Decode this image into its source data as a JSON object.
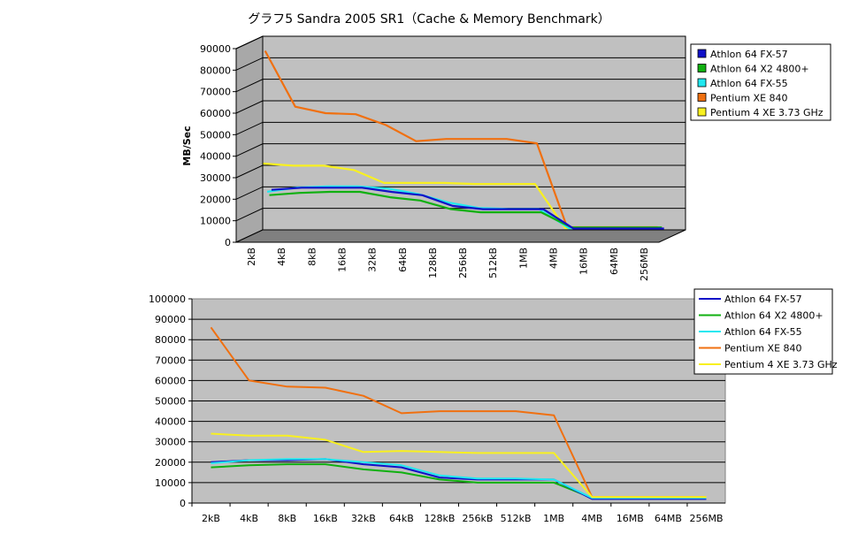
{
  "title": "グラフ5  Sandra 2005 SR1（Cache & Memory Benchmark）",
  "colors": {
    "athlon_fx57": "#1010c8",
    "athlon_x2": "#10b010",
    "athlon_fx55": "#20e8f0",
    "pentium_xe840": "#f07010",
    "pentium4_xe": "#f8f020",
    "plot_bg": "#c0c0c0"
  },
  "chart_data": [
    {
      "type": "line",
      "style": "3d",
      "title": "",
      "xlabel": "",
      "ylabel": "MB/Sec",
      "ylim": [
        0,
        90000
      ],
      "yticks": [
        "0",
        "10000",
        "20000",
        "30000",
        "40000",
        "50000",
        "60000",
        "70000",
        "80000",
        "90000"
      ],
      "categories": [
        "2kB",
        "4kB",
        "8kB",
        "16kB",
        "32kB",
        "64kB",
        "128kB",
        "256kB",
        "512kB",
        "1MB",
        "4MB",
        "16MB",
        "64MB",
        "256MB"
      ],
      "legend_position": "top-right",
      "grid": true,
      "series": [
        {
          "name": "Athlon 64 FX-57",
          "values": [
            20000,
            21000,
            21000,
            21000,
            19000,
            17500,
            12500,
            11000,
            11000,
            11000,
            2000,
            2000,
            2000,
            2000
          ]
        },
        {
          "name": "Athlon 64 X2 4800+",
          "values": [
            18000,
            19000,
            19500,
            19500,
            17000,
            15500,
            11500,
            10000,
            10000,
            10000,
            3000,
            3000,
            3000,
            3000
          ]
        },
        {
          "name": "Athlon 64 FX-55",
          "values": [
            20000,
            22000,
            22500,
            22500,
            21500,
            19000,
            15000,
            12500,
            12000,
            12000,
            3000,
            3000,
            3000,
            3000
          ]
        },
        {
          "name": "Pentium XE 840",
          "values": [
            86000,
            60000,
            57000,
            56500,
            51500,
            44000,
            45000,
            45000,
            45000,
            43000,
            4000,
            4000,
            4000,
            4000
          ]
        },
        {
          "name": "Pentium 4 XE 3.73 GHz",
          "values": [
            34000,
            33000,
            33000,
            31000,
            25000,
            25000,
            25000,
            24500,
            24500,
            24500,
            4000,
            4000,
            4000,
            4000
          ]
        }
      ]
    },
    {
      "type": "line",
      "title": "",
      "xlabel": "",
      "ylabel": "",
      "ylim": [
        0,
        100000
      ],
      "yticks": [
        "0",
        "10000",
        "20000",
        "30000",
        "40000",
        "50000",
        "60000",
        "70000",
        "80000",
        "90000",
        "100000"
      ],
      "categories": [
        "2kB",
        "4kB",
        "8kB",
        "16kB",
        "32kB",
        "64kB",
        "128kB",
        "256kB",
        "512kB",
        "1MB",
        "4MB",
        "16MB",
        "64MB",
        "256MB"
      ],
      "legend_position": "top-right",
      "grid": true,
      "series": [
        {
          "name": "Athlon 64 FX-57",
          "values": [
            20000,
            21000,
            21000,
            21500,
            19000,
            17500,
            12500,
            11500,
            11500,
            11500,
            2000,
            2000,
            2000,
            2000
          ]
        },
        {
          "name": "Athlon 64 X2 4800+",
          "values": [
            17500,
            18500,
            19000,
            19000,
            16500,
            15000,
            11500,
            10000,
            10000,
            10000,
            2500,
            2500,
            2500,
            2500
          ]
        },
        {
          "name": "Athlon 64 FX-55",
          "values": [
            19500,
            21000,
            21500,
            21500,
            20000,
            18500,
            13500,
            12000,
            12000,
            11500,
            2500,
            2500,
            2500,
            2500
          ]
        },
        {
          "name": "Pentium XE 840",
          "values": [
            86000,
            60000,
            57000,
            56500,
            52500,
            44000,
            45000,
            45000,
            45000,
            43000,
            3000,
            3000,
            3000,
            3000
          ]
        },
        {
          "name": "Pentium 4 XE 3.73 GHz",
          "values": [
            34000,
            33000,
            33000,
            31000,
            25000,
            25500,
            25000,
            24500,
            24500,
            24500,
            3000,
            3000,
            3000,
            3000
          ]
        }
      ]
    }
  ]
}
